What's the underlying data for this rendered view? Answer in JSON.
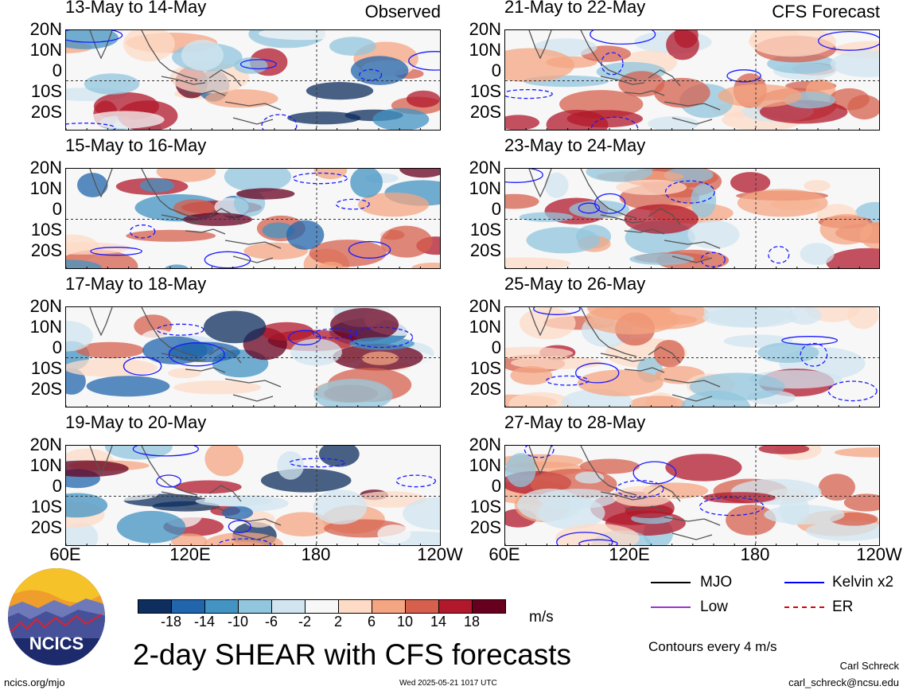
{
  "panels": [
    {
      "title": "13-May to 14-May",
      "tag": "Observed",
      "seed": 1
    },
    {
      "title": "21-May to 22-May",
      "tag": "CFS Forecast",
      "seed": 2
    },
    {
      "title": "15-May to 16-May",
      "tag": "",
      "seed": 3
    },
    {
      "title": "23-May to 24-May",
      "tag": "",
      "seed": 4
    },
    {
      "title": "17-May to 18-May",
      "tag": "",
      "seed": 5
    },
    {
      "title": "25-May to 26-May",
      "tag": "",
      "seed": 6
    },
    {
      "title": "19-May to 20-May",
      "tag": "",
      "seed": 7
    },
    {
      "title": "27-May to 28-May",
      "tag": "",
      "seed": 8
    }
  ],
  "lat_labels": [
    "20N",
    "10N",
    "0",
    "10S",
    "20S"
  ],
  "lon_labels": [
    "60E",
    "120E",
    "180",
    "120W"
  ],
  "colorbar": {
    "labels": [
      "-18",
      "-14",
      "-10",
      "-6",
      "-2",
      "2",
      "6",
      "10",
      "14",
      "18"
    ],
    "colors": [
      "#0d2e5e",
      "#2166ac",
      "#4393c3",
      "#92c5de",
      "#d1e5f0",
      "#f7f7f7",
      "#fddbc7",
      "#f4a582",
      "#d6604d",
      "#b2182b",
      "#67001f"
    ],
    "units": "m/s"
  },
  "legend": [
    {
      "label": "MJO",
      "color": "#000000",
      "style": "solid"
    },
    {
      "label": "Kelvin x2",
      "color": "#0000ff",
      "style": "solid"
    },
    {
      "label": "Low",
      "color": "#9933cc",
      "style": "solid"
    },
    {
      "label": "ER",
      "color": "#dd0000",
      "style": "dashed"
    }
  ],
  "contour_note": "Contours every 4 m/s",
  "title": "2-day SHEAR with CFS forecasts",
  "logo_text": "NCICS",
  "site": "ncics.org/mjo",
  "timestamp": "Wed 2025-05-21 1017 UTC",
  "author": "Carl Schreck",
  "email": "carl_schreck@ncsu.edu"
}
